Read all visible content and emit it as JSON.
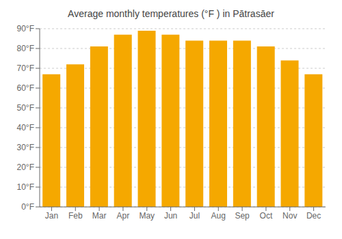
{
  "chart_data": {
    "type": "bar",
    "title": "Average monthly temperatures (°F ) in Pātrasāer",
    "categories": [
      "Jan",
      "Feb",
      "Mar",
      "Apr",
      "May",
      "Jun",
      "Jul",
      "Aug",
      "Sep",
      "Oct",
      "Nov",
      "Dec"
    ],
    "values": [
      67,
      72,
      81,
      87,
      89,
      87,
      84,
      84,
      84,
      81,
      74,
      67
    ],
    "color": "#F5A800",
    "ylim": [
      0,
      90
    ],
    "yticks": [
      {
        "value": 0,
        "label": "0°F"
      },
      {
        "value": 10,
        "label": "10°F"
      },
      {
        "value": 20,
        "label": "20°F"
      },
      {
        "value": 30,
        "label": "30°F"
      },
      {
        "value": 40,
        "label": "40°F"
      },
      {
        "value": 50,
        "label": "50°F"
      },
      {
        "value": 60,
        "label": "60°F"
      },
      {
        "value": 70,
        "label": "70°F"
      },
      {
        "value": 80,
        "label": "80°F"
      },
      {
        "value": 90,
        "label": "90°F"
      }
    ],
    "grid": true
  }
}
